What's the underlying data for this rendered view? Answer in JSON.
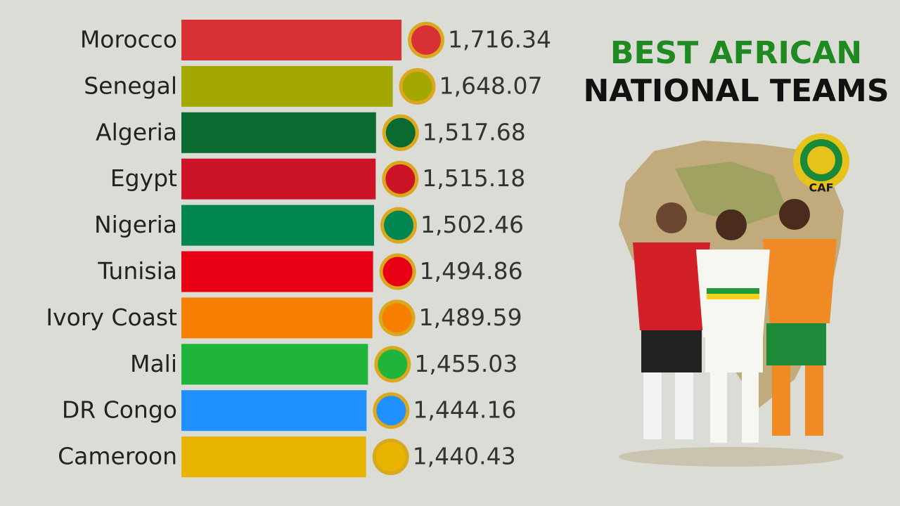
{
  "chart_data": {
    "type": "bar",
    "title": [
      "BEST AFRICAN",
      "NATIONAL TEAMS"
    ],
    "logo_text": "CAF",
    "categories": [
      "Morocco",
      "Senegal",
      "Algeria",
      "Egypt",
      "Nigeria",
      "Tunisia",
      "Ivory Coast",
      "Mali",
      "DR Congo",
      "Cameroon"
    ],
    "values": [
      1716.34,
      1648.07,
      1517.68,
      1515.18,
      1502.46,
      1494.86,
      1489.59,
      1455.03,
      1444.16,
      1440.43
    ],
    "value_labels": [
      "1,716.34",
      "1,648.07",
      "1,517.68",
      "1,515.18",
      "1,502.46",
      "1,494.86",
      "1,489.59",
      "1,455.03",
      "1,444.16",
      "1,440.43"
    ],
    "colors": [
      "#d93036",
      "#a3a800",
      "#0b6a30",
      "#cc1426",
      "#008751",
      "#e70013",
      "#f77f00",
      "#1eb53a",
      "#1e90ff",
      "#e8b400"
    ]
  }
}
